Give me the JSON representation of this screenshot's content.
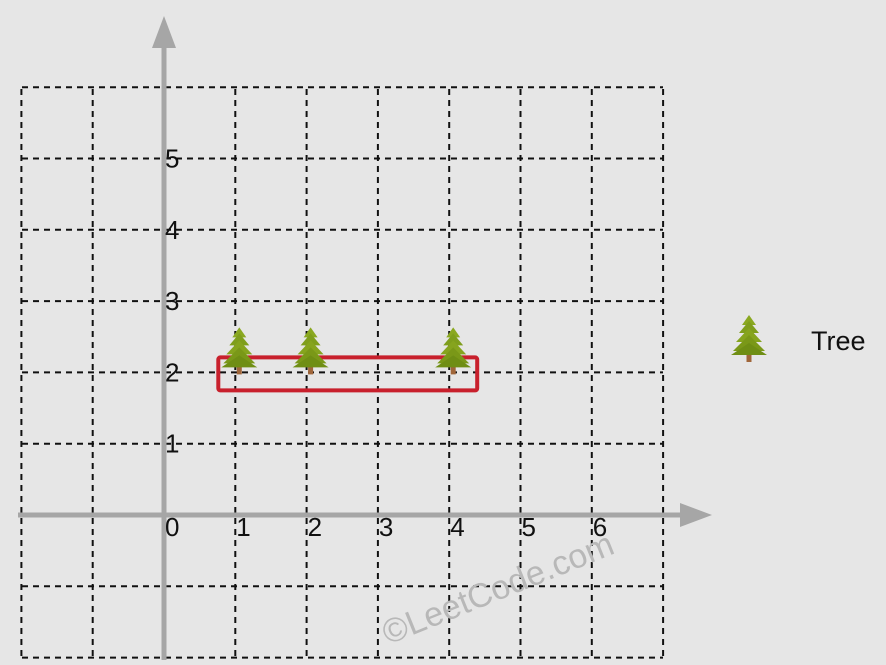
{
  "diagram": {
    "x_ticks": [
      "0",
      "1",
      "2",
      "3",
      "4",
      "5",
      "6"
    ],
    "y_ticks": [
      "1",
      "2",
      "3",
      "4",
      "5"
    ],
    "grid": "dashed",
    "trees": [
      {
        "x": 1,
        "y": 2
      },
      {
        "x": 2,
        "y": 2
      },
      {
        "x": 4,
        "y": 2
      }
    ],
    "fence": {
      "x_min": 1,
      "x_max": 4,
      "y_min": 2,
      "y_max": 2
    },
    "fence_color": "#c8202c",
    "axis_color": "#a6a6a6",
    "tree_icon": "evergreen-tree-icon"
  },
  "legend": {
    "label": "Tree",
    "icon": "evergreen-tree-icon"
  },
  "watermark": "©LeetCode.com"
}
